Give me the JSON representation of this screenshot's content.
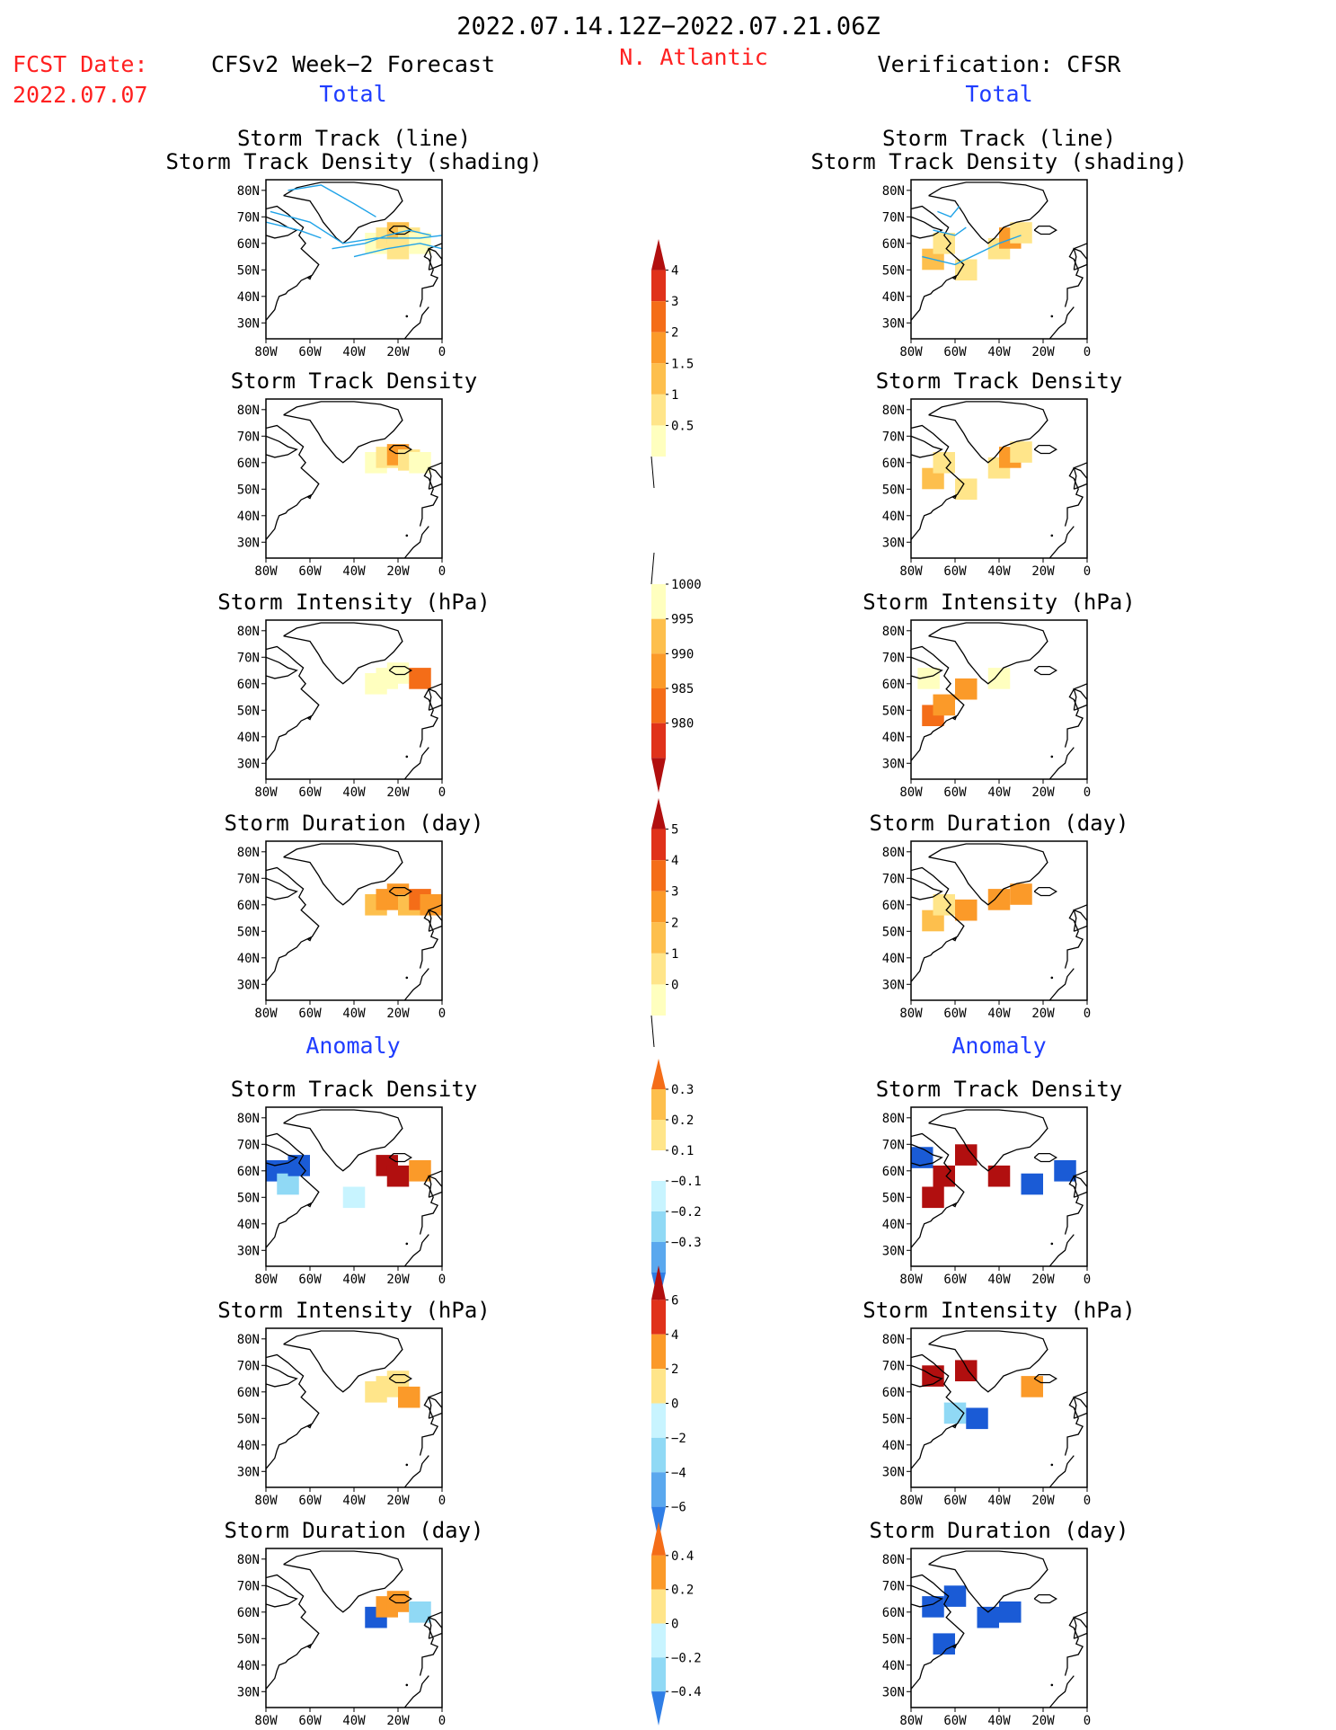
{
  "header": {
    "date_range": "2022.07.14.12Z−2022.07.21.06Z",
    "fcst_label": "FCST Date:",
    "fcst_date": "2022.07.07",
    "left_title": "CFSv2 Week−2 Forecast",
    "region": "N. Atlantic",
    "right_title": "Verification: CFSR",
    "total_label": "Total",
    "anomaly_label": "Anomaly"
  },
  "panel_titles": {
    "track_line": "Storm Track (line)",
    "track_shading": "Storm Track Density (shading)",
    "density": "Storm Track Density",
    "intensity": "Storm Intensity (hPa)",
    "duration": "Storm Duration (day)"
  },
  "map_axes": {
    "x_ticks": [
      "80W",
      "60W",
      "40W",
      "20W",
      "0"
    ],
    "y_ticks": [
      "80N",
      "70N",
      "60N",
      "50N",
      "40N",
      "30N"
    ],
    "lon_range": [
      -80,
      0
    ],
    "lat_range": [
      24,
      84
    ]
  },
  "colorbars": [
    {
      "labels": [
        "4",
        "3",
        "2",
        "1.5",
        "1",
        "0.5"
      ]
    },
    {
      "labels": [
        "1000",
        "995",
        "990",
        "985",
        "980"
      ]
    },
    {
      "labels": [
        "5",
        "4",
        "3",
        "2",
        "1",
        "0"
      ]
    },
    {
      "labels": [
        "0.3",
        "0.2",
        "0.1",
        "−0.1",
        "−0.2",
        "−0.3"
      ]
    },
    {
      "labels": [
        "6",
        "4",
        "2",
        "0",
        "−2",
        "−4",
        "−6"
      ]
    },
    {
      "labels": [
        "0.4",
        "0.2",
        "0",
        "−0.2",
        "−0.4"
      ]
    }
  ],
  "colors": {
    "red_text": "#ff2020",
    "blue_text": "#1f3dff",
    "warm": [
      "#ffffbf",
      "#ffe58a",
      "#fdbf4d",
      "#fb9a29",
      "#f46d18",
      "#e0321a",
      "#b10f0f"
    ],
    "cool": [
      "#c8f4ff",
      "#90d9f5",
      "#5aa8ee",
      "#2f7ee6",
      "#1a5bd6"
    ],
    "track_line": "#1fa3e8"
  },
  "chart_data": {
    "type": "heatmap",
    "description_units": "lon/lat grid cells, value in panel units",
    "panels": [
      {
        "column": "forecast",
        "row": "track",
        "cells": [
          [
            -30,
            60,
            0.6
          ],
          [
            -25,
            62,
            1.0
          ],
          [
            -20,
            64,
            1.5
          ],
          [
            -15,
            62,
            1.2
          ],
          [
            -20,
            58,
            0.8
          ],
          [
            -10,
            60,
            0.6
          ]
        ],
        "tracks": [
          [
            [
              -78,
              72
            ],
            [
              -60,
              68
            ],
            [
              -45,
              60
            ],
            [
              -30,
              62
            ],
            [
              -10,
              62
            ],
            [
              0,
              63
            ]
          ],
          [
            [
              -50,
              58
            ],
            [
              -35,
              60
            ],
            [
              -25,
              63
            ],
            [
              -15,
              65
            ],
            [
              -5,
              63
            ]
          ],
          [
            [
              -70,
              80
            ],
            [
              -55,
              82
            ],
            [
              -40,
              75
            ],
            [
              -30,
              70
            ]
          ],
          [
            [
              -80,
              68
            ],
            [
              -65,
              65
            ],
            [
              -55,
              62
            ]
          ],
          [
            [
              -40,
              55
            ],
            [
              -25,
              58
            ],
            [
              -10,
              60
            ],
            [
              0,
              58
            ]
          ]
        ]
      },
      {
        "column": "forecast",
        "row": "density",
        "cells": [
          [
            -30,
            60,
            0.6
          ],
          [
            -25,
            62,
            1.2
          ],
          [
            -20,
            63,
            1.8
          ],
          [
            -15,
            61,
            1.0
          ],
          [
            -10,
            60,
            0.6
          ]
        ]
      },
      {
        "column": "forecast",
        "row": "intensity",
        "cells": [
          [
            -30,
            60,
            1000
          ],
          [
            -25,
            62,
            998
          ],
          [
            -20,
            64,
            998
          ],
          [
            -10,
            62,
            990
          ]
        ]
      },
      {
        "column": "forecast",
        "row": "duration",
        "cells": [
          [
            -30,
            60,
            2
          ],
          [
            -25,
            62,
            3
          ],
          [
            -20,
            64,
            3
          ],
          [
            -15,
            60,
            2
          ],
          [
            -10,
            62,
            4
          ],
          [
            -5,
            60,
            3
          ]
        ]
      },
      {
        "column": "forecast",
        "row": "anom_density",
        "cells": [
          [
            -75,
            60,
            -0.3
          ],
          [
            -70,
            55,
            -0.2
          ],
          [
            -65,
            62,
            -0.3
          ],
          [
            -25,
            62,
            0.3
          ],
          [
            -20,
            58,
            0.3
          ],
          [
            -10,
            60,
            0.2
          ],
          [
            -40,
            50,
            -0.1
          ]
        ]
      },
      {
        "column": "forecast",
        "row": "anom_intensity",
        "cells": [
          [
            -30,
            60,
            2
          ],
          [
            -25,
            62,
            2
          ],
          [
            -20,
            64,
            2
          ],
          [
            -15,
            58,
            3
          ]
        ]
      },
      {
        "column": "forecast",
        "row": "anom_duration",
        "cells": [
          [
            -30,
            58,
            -2
          ],
          [
            -25,
            62,
            0.2
          ],
          [
            -20,
            64,
            0.3
          ],
          [
            -10,
            60,
            -0.3
          ]
        ]
      },
      {
        "column": "verification",
        "row": "track",
        "cells": [
          [
            -70,
            54,
            1.5
          ],
          [
            -65,
            60,
            1.0
          ],
          [
            -55,
            50,
            1.2
          ],
          [
            -40,
            58,
            1.0
          ],
          [
            -35,
            62,
            1.8
          ],
          [
            -30,
            64,
            1.2
          ]
        ],
        "tracks": [
          [
            [
              -75,
              55
            ],
            [
              -60,
              52
            ],
            [
              -50,
              56
            ],
            [
              -40,
              60
            ],
            [
              -30,
              63
            ]
          ],
          [
            [
              -70,
              65
            ],
            [
              -60,
              63
            ],
            [
              -55,
              66
            ]
          ],
          [
            [
              -68,
              72
            ],
            [
              -62,
              70
            ],
            [
              -58,
              74
            ]
          ]
        ]
      },
      {
        "column": "verification",
        "row": "density",
        "cells": [
          [
            -70,
            54,
            1.5
          ],
          [
            -65,
            60,
            1.0
          ],
          [
            -55,
            50,
            1.2
          ],
          [
            -40,
            58,
            1.0
          ],
          [
            -35,
            62,
            2.0
          ],
          [
            -30,
            64,
            1.2
          ]
        ]
      },
      {
        "column": "verification",
        "row": "intensity",
        "cells": [
          [
            -70,
            48,
            990
          ],
          [
            -65,
            52,
            993
          ],
          [
            -55,
            58,
            995
          ],
          [
            -40,
            62,
            1000
          ],
          [
            -72,
            62,
            998
          ]
        ]
      },
      {
        "column": "verification",
        "row": "duration",
        "cells": [
          [
            -70,
            54,
            2
          ],
          [
            -65,
            60,
            1
          ],
          [
            -55,
            58,
            3
          ],
          [
            -40,
            62,
            3
          ],
          [
            -30,
            64,
            3
          ]
        ]
      },
      {
        "column": "verification",
        "row": "anom_density",
        "cells": [
          [
            -70,
            50,
            0.3
          ],
          [
            -65,
            58,
            0.3
          ],
          [
            -55,
            66,
            0.3
          ],
          [
            -40,
            58,
            0.3
          ],
          [
            -25,
            55,
            -0.3
          ],
          [
            -10,
            60,
            -0.3
          ],
          [
            -75,
            65,
            -0.3
          ]
        ]
      },
      {
        "column": "verification",
        "row": "anom_intensity",
        "cells": [
          [
            -70,
            66,
            6
          ],
          [
            -55,
            68,
            6
          ],
          [
            -25,
            62,
            4
          ],
          [
            -60,
            52,
            -4
          ],
          [
            -50,
            50,
            -6
          ]
        ]
      },
      {
        "column": "verification",
        "row": "anom_duration",
        "cells": [
          [
            -70,
            62,
            -0.4
          ],
          [
            -60,
            66,
            -0.4
          ],
          [
            -45,
            58,
            -0.4
          ],
          [
            -35,
            60,
            -0.4
          ],
          [
            -65,
            48,
            -0.4
          ]
        ]
      }
    ]
  }
}
